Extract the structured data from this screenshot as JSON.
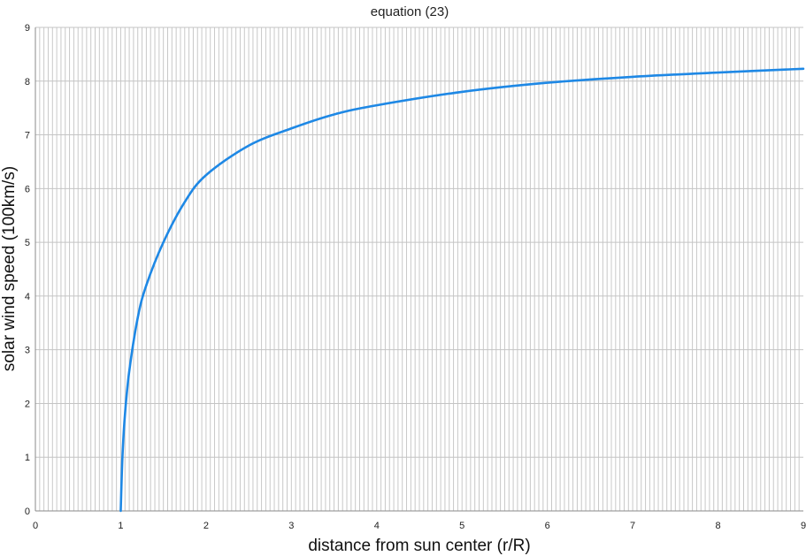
{
  "chart_data": {
    "type": "line",
    "title": "equation (23)",
    "xlabel": "distance from sun center (r/R)",
    "ylabel": "solar wind speed (100km/s)",
    "xlim": [
      0,
      9
    ],
    "ylim": [
      0,
      9
    ],
    "x_ticks": [
      "0",
      "1",
      "2",
      "3",
      "4",
      "5",
      "6",
      "7",
      "8",
      "9"
    ],
    "y_ticks": [
      "0",
      "1",
      "2",
      "3",
      "4",
      "5",
      "6",
      "7",
      "8",
      "9"
    ],
    "grid": true,
    "legend": "none",
    "series": [
      {
        "color": "#1e88e5",
        "x": [
          1.0,
          1.02,
          1.05,
          1.1,
          1.2,
          1.3,
          1.5,
          1.75,
          2.0,
          2.5,
          3.0,
          3.5,
          4.0,
          5.0,
          6.0,
          7.0,
          8.0,
          9.0
        ],
        "y": [
          0.0,
          1.0,
          1.8,
          2.6,
          3.6,
          4.2,
          5.0,
          5.75,
          6.25,
          6.8,
          7.12,
          7.38,
          7.55,
          7.8,
          7.97,
          8.08,
          8.16,
          8.23
        ]
      }
    ]
  }
}
